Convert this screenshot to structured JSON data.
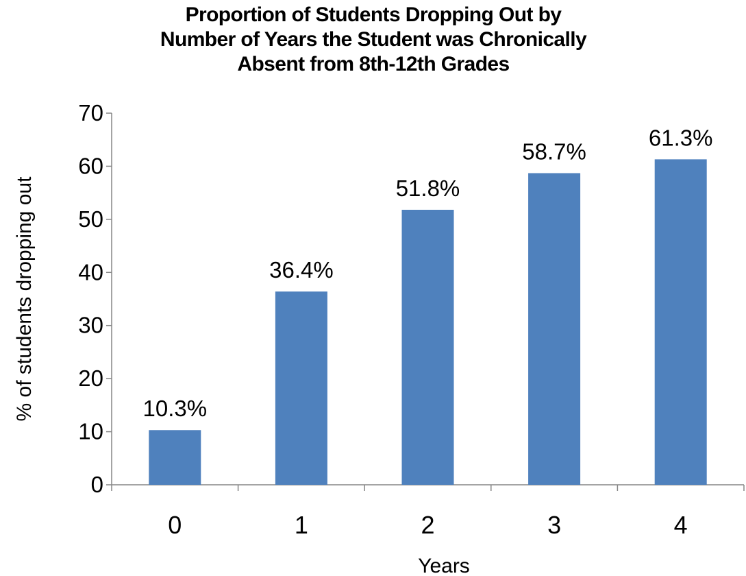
{
  "chart_data": {
    "type": "bar",
    "title_lines": [
      "Proportion of Students Dropping Out by",
      "Number of Years the Student was Chronically",
      "Absent from 8th-12th Grades"
    ],
    "xlabel": "Years",
    "ylabel": "% of students dropping out",
    "categories": [
      "0",
      "1",
      "2",
      "3",
      "4"
    ],
    "values": [
      10.3,
      36.4,
      51.8,
      58.7,
      61.3
    ],
    "data_labels": [
      "10.3%",
      "36.4%",
      "51.8%",
      "58.7%",
      "61.3%"
    ],
    "ylim": [
      0,
      70
    ],
    "yticks": [
      0,
      10,
      20,
      30,
      40,
      50,
      60,
      70
    ],
    "grid": false,
    "legend": "none",
    "bar_color": "#4f81bd",
    "axis_color": "#868686"
  }
}
